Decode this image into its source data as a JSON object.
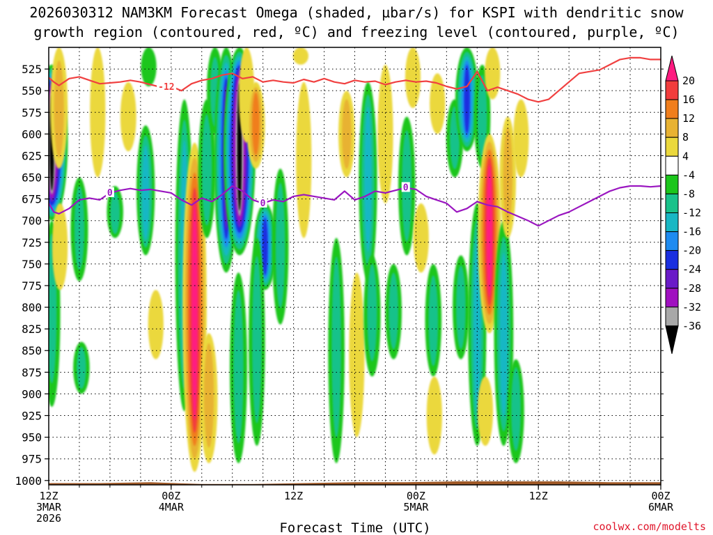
{
  "chart_data": {
    "type": "heatmap",
    "title_line1": "2026030312 NAM3KM Forecast Omega (shaded, µbar/s) for KSPI with dendritic snow",
    "title_line2": "growth region (contoured, red, ºC) and freezing level (contoured, purple, ºC)",
    "xlabel": "Forecast Time (UTC)",
    "ylabel": "",
    "credit": "coolwx.com/modelts",
    "y_range": [
      1005,
      500
    ],
    "x_range": [
      0,
      60
    ],
    "y_ticks": [
      525,
      550,
      575,
      600,
      625,
      650,
      675,
      700,
      725,
      750,
      775,
      800,
      825,
      850,
      875,
      900,
      925,
      950,
      975,
      1000
    ],
    "x_ticks": [
      {
        "hour": 0,
        "line1": "12Z",
        "line2": "3MAR",
        "line3": "2026"
      },
      {
        "hour": 12,
        "line1": "00Z",
        "line2": "4MAR",
        "line3": ""
      },
      {
        "hour": 24,
        "line1": "12Z",
        "line2": "",
        "line3": ""
      },
      {
        "hour": 36,
        "line1": "00Z",
        "line2": "5MAR",
        "line3": ""
      },
      {
        "hour": 48,
        "line1": "12Z",
        "line2": "",
        "line3": ""
      },
      {
        "hour": 60,
        "line1": "00Z",
        "line2": "6MAR",
        "line3": ""
      }
    ],
    "colorbar": {
      "labels": [
        "20",
        "16",
        "12",
        "8",
        "4",
        "-4",
        "-8",
        "-12",
        "-16",
        "-20",
        "-24",
        "-28",
        "-32",
        "-36"
      ],
      "bands": [
        {
          "lo": 20,
          "hi": 24,
          "color": "#ff1a80"
        },
        {
          "lo": 16,
          "hi": 20,
          "color": "#f23c3c"
        },
        {
          "lo": 12,
          "hi": 16,
          "color": "#f07e1c"
        },
        {
          "lo": 8,
          "hi": 12,
          "color": "#e8b232"
        },
        {
          "lo": 4,
          "hi": 8,
          "color": "#ebd83c"
        },
        {
          "lo": -4,
          "hi": 4,
          "color": "#ffffff"
        },
        {
          "lo": -8,
          "hi": -4,
          "color": "#1bc61b"
        },
        {
          "lo": -12,
          "hi": -8,
          "color": "#19c28a"
        },
        {
          "lo": -16,
          "hi": -12,
          "color": "#18b7c4"
        },
        {
          "lo": -20,
          "hi": -16,
          "color": "#1e8bf0"
        },
        {
          "lo": -24,
          "hi": -20,
          "color": "#1a2ee0"
        },
        {
          "lo": -28,
          "hi": -24,
          "color": "#6a1ac8"
        },
        {
          "lo": -32,
          "hi": -28,
          "color": "#a010c0"
        },
        {
          "lo": -36,
          "hi": -32,
          "color": "#a8a8a8"
        },
        {
          "lo": -40,
          "hi": -36,
          "color": "#000000"
        }
      ]
    },
    "omega_features": [
      {
        "hour": 0.3,
        "center": 610,
        "p_top": 520,
        "p_bot": 700,
        "peak": -40
      },
      {
        "hour": 0.3,
        "center": 760,
        "p_top": 700,
        "p_bot": 915,
        "peak": -9
      },
      {
        "hour": 1.0,
        "center": 580,
        "p_top": 500,
        "p_bot": 640,
        "peak": 10
      },
      {
        "hour": 1.1,
        "center": 720,
        "p_top": 680,
        "p_bot": 780,
        "peak": 6
      },
      {
        "hour": 3.0,
        "center": 700,
        "p_top": 650,
        "p_bot": 770,
        "peak": -10
      },
      {
        "hour": 3.2,
        "center": 870,
        "p_top": 840,
        "p_bot": 900,
        "peak": -8
      },
      {
        "hour": 4.8,
        "center": 600,
        "p_top": 500,
        "p_bot": 650,
        "peak": 6
      },
      {
        "hour": 6.5,
        "center": 700,
        "p_top": 660,
        "p_bot": 720,
        "peak": -8
      },
      {
        "hour": 7.8,
        "center": 570,
        "p_top": 540,
        "p_bot": 620,
        "peak": 7
      },
      {
        "hour": 9.5,
        "center": 680,
        "p_top": 590,
        "p_bot": 740,
        "peak": -12
      },
      {
        "hour": 9.8,
        "center": 520,
        "p_top": 500,
        "p_bot": 545,
        "peak": -6
      },
      {
        "hour": 10.5,
        "center": 820,
        "p_top": 780,
        "p_bot": 860,
        "peak": 6
      },
      {
        "hour": 13.3,
        "center": 730,
        "p_top": 560,
        "p_bot": 920,
        "peak": -12
      },
      {
        "hour": 14.3,
        "center": 820,
        "p_top": 610,
        "p_bot": 990,
        "peak": 24
      },
      {
        "hour": 15.5,
        "center": 650,
        "p_top": 560,
        "p_bot": 720,
        "peak": -10
      },
      {
        "hour": 15.7,
        "center": 880,
        "p_top": 830,
        "p_bot": 980,
        "peak": 10
      },
      {
        "hour": 16.3,
        "center": 560,
        "p_top": 500,
        "p_bot": 600,
        "peak": -8
      },
      {
        "hour": 17.4,
        "center": 620,
        "p_top": 500,
        "p_bot": 760,
        "peak": -24
      },
      {
        "hour": 18.7,
        "center": 600,
        "p_top": 500,
        "p_bot": 740,
        "peak": -40
      },
      {
        "hour": 18.6,
        "center": 860,
        "p_top": 760,
        "p_bot": 980,
        "peak": -10
      },
      {
        "hour": 19.4,
        "center": 540,
        "p_top": 500,
        "p_bot": 610,
        "peak": 6
      },
      {
        "hour": 20.3,
        "center": 580,
        "p_top": 540,
        "p_bot": 640,
        "peak": 12
      },
      {
        "hour": 21.2,
        "center": 730,
        "p_top": 680,
        "p_bot": 780,
        "peak": -20
      },
      {
        "hour": 20.4,
        "center": 820,
        "p_top": 720,
        "p_bot": 960,
        "peak": -8
      },
      {
        "hour": 22.7,
        "center": 720,
        "p_top": 640,
        "p_bot": 820,
        "peak": -8
      },
      {
        "hour": 24.7,
        "center": 500,
        "p_top": 500,
        "p_bot": 520,
        "peak": 6
      },
      {
        "hour": 25.0,
        "center": 620,
        "p_top": 540,
        "p_bot": 720,
        "peak": 6
      },
      {
        "hour": 28.2,
        "center": 820,
        "p_top": 720,
        "p_bot": 980,
        "peak": -8
      },
      {
        "hour": 29.2,
        "center": 600,
        "p_top": 550,
        "p_bot": 650,
        "peak": 8
      },
      {
        "hour": 30.2,
        "center": 870,
        "p_top": 760,
        "p_bot": 950,
        "peak": 6
      },
      {
        "hour": 31.3,
        "center": 640,
        "p_top": 540,
        "p_bot": 770,
        "peak": -12
      },
      {
        "hour": 31.7,
        "center": 780,
        "p_top": 740,
        "p_bot": 880,
        "peak": -9
      },
      {
        "hour": 33.0,
        "center": 600,
        "p_top": 520,
        "p_bot": 680,
        "peak": 6
      },
      {
        "hour": 33.8,
        "center": 800,
        "p_top": 750,
        "p_bot": 860,
        "peak": -8
      },
      {
        "hour": 35.1,
        "center": 660,
        "p_top": 580,
        "p_bot": 740,
        "peak": -9
      },
      {
        "hour": 35.7,
        "center": 530,
        "p_top": 500,
        "p_bot": 570,
        "peak": 6
      },
      {
        "hour": 36.5,
        "center": 720,
        "p_top": 680,
        "p_bot": 760,
        "peak": 6
      },
      {
        "hour": 37.7,
        "center": 820,
        "p_top": 750,
        "p_bot": 880,
        "peak": -8
      },
      {
        "hour": 38.1,
        "center": 560,
        "p_top": 530,
        "p_bot": 600,
        "peak": 6
      },
      {
        "hour": 37.8,
        "center": 920,
        "p_top": 880,
        "p_bot": 970,
        "peak": 6
      },
      {
        "hour": 39.8,
        "center": 600,
        "p_top": 560,
        "p_bot": 650,
        "peak": -9
      },
      {
        "hour": 40.4,
        "center": 800,
        "p_top": 740,
        "p_bot": 860,
        "peak": -8
      },
      {
        "hour": 41.0,
        "center": 560,
        "p_top": 500,
        "p_bot": 620,
        "peak": -22
      },
      {
        "hour": 42.0,
        "center": 820,
        "p_top": 680,
        "p_bot": 960,
        "peak": -12
      },
      {
        "hour": 42.5,
        "center": 580,
        "p_top": 520,
        "p_bot": 640,
        "peak": -8
      },
      {
        "hour": 43.2,
        "center": 700,
        "p_top": 600,
        "p_bot": 830,
        "peak": 22
      },
      {
        "hour": 42.8,
        "center": 930,
        "p_top": 880,
        "p_bot": 960,
        "peak": 6
      },
      {
        "hour": 43.5,
        "center": 520,
        "p_top": 500,
        "p_bot": 560,
        "peak": 6
      },
      {
        "hour": 44.6,
        "center": 840,
        "p_top": 700,
        "p_bot": 960,
        "peak": -14
      },
      {
        "hour": 45.0,
        "center": 640,
        "p_top": 580,
        "p_bot": 720,
        "peak": 8
      },
      {
        "hour": 45.8,
        "center": 900,
        "p_top": 860,
        "p_bot": 980,
        "peak": -8
      },
      {
        "hour": 46.3,
        "center": 600,
        "p_top": 560,
        "p_bot": 650,
        "peak": 6
      }
    ],
    "terrain": {
      "color": "#a05a28",
      "hours": [
        0,
        5,
        10,
        15,
        20,
        25,
        30,
        35,
        40,
        45,
        50,
        55,
        60
      ],
      "top_hpa": [
        1003,
        1003,
        1002,
        1004,
        1004,
        1003,
        1002,
        1002,
        1001,
        1001,
        1001,
        1002,
        1002
      ]
    },
    "dgz_minus12": {
      "label": "-12",
      "color": "#f04040",
      "hours": [
        0,
        0.5,
        1,
        2,
        3,
        4,
        5,
        6,
        7,
        8,
        9,
        10,
        11,
        12,
        13,
        14,
        15,
        16,
        17,
        18,
        19,
        20,
        21,
        22,
        23,
        24,
        25,
        26,
        27,
        28,
        29,
        30,
        31,
        32,
        33,
        34,
        35,
        36,
        37,
        38,
        39,
        40,
        41,
        42,
        43,
        44,
        45,
        46,
        47,
        48,
        49,
        50,
        51,
        52,
        53,
        54,
        55,
        56,
        57,
        58,
        59,
        60
      ],
      "p_hpa": [
        535,
        540,
        544,
        536,
        534,
        538,
        542,
        541,
        540,
        538,
        540,
        543,
        546,
        545,
        550,
        542,
        538,
        536,
        532,
        530,
        536,
        534,
        540,
        538,
        540,
        541,
        537,
        540,
        536,
        540,
        542,
        538,
        540,
        539,
        543,
        540,
        538,
        540,
        539,
        541,
        545,
        548,
        545,
        528,
        550,
        546,
        550,
        554,
        560,
        563,
        560,
        550,
        540,
        530,
        528,
        526,
        520,
        514,
        512,
        512,
        514,
        514
      ]
    },
    "freezing_0": {
      "label": "0",
      "color": "#9a16c0",
      "hours": [
        0,
        0.5,
        1,
        2,
        3,
        4,
        5,
        6,
        7,
        8,
        9,
        10,
        11,
        12,
        13,
        14,
        15,
        16,
        17,
        18,
        19,
        20,
        21,
        22,
        23,
        24,
        25,
        26,
        27,
        28,
        29,
        30,
        31,
        32,
        33,
        34,
        35,
        36,
        37,
        38,
        39,
        40,
        41,
        42,
        43,
        44,
        45,
        46,
        47,
        48,
        49,
        50,
        51,
        52,
        53,
        54,
        55,
        56,
        57,
        58,
        59,
        60
      ],
      "p_hpa": [
        680,
        690,
        692,
        686,
        676,
        674,
        676,
        668,
        665,
        663,
        665,
        664,
        666,
        668,
        676,
        682,
        674,
        678,
        670,
        660,
        666,
        676,
        680,
        676,
        678,
        672,
        670,
        672,
        674,
        676,
        666,
        676,
        672,
        666,
        668,
        665,
        662,
        664,
        672,
        676,
        680,
        690,
        686,
        678,
        682,
        684,
        690,
        695,
        700,
        706,
        700,
        694,
        690,
        684,
        678,
        672,
        666,
        662,
        660,
        660,
        661,
        660
      ]
    }
  }
}
